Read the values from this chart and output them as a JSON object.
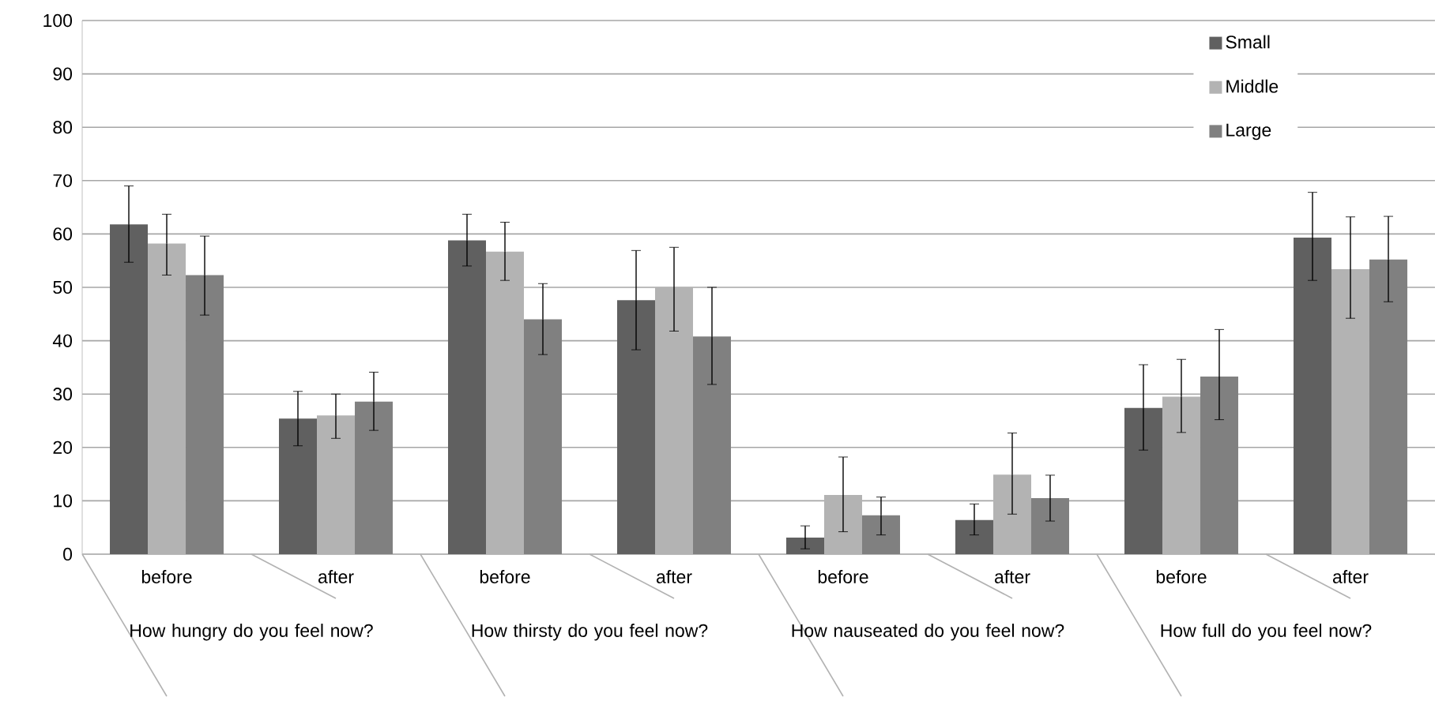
{
  "chart_data": {
    "type": "bar",
    "categories": [
      "before",
      "after",
      "before",
      "after",
      "before",
      "after",
      "before",
      "after"
    ],
    "series": [
      {
        "name": "Small",
        "color": "#606060",
        "values": [
          61.8,
          25.4,
          58.8,
          47.6,
          3.1,
          6.4,
          27.4,
          59.3
        ],
        "errors": [
          [
            54.7,
            69
          ],
          [
            20.3,
            30.5
          ],
          [
            54,
            63.7
          ],
          [
            38.3,
            56.9
          ],
          [
            1,
            5.3
          ],
          [
            3.6,
            9.4
          ],
          [
            19.5,
            35.5
          ],
          [
            51.3,
            67.8
          ]
        ]
      },
      {
        "name": "Middle",
        "color": "#b3b3b3",
        "values": [
          58.2,
          26,
          56.7,
          50,
          11.1,
          14.9,
          29.5,
          53.4
        ],
        "errors": [
          [
            52.3,
            63.7
          ],
          [
            21.7,
            30
          ],
          [
            51.3,
            62.2
          ],
          [
            41.8,
            57.5
          ],
          [
            4.2,
            18.2
          ],
          [
            7.5,
            22.7
          ],
          [
            22.8,
            36.5
          ],
          [
            44.2,
            63.2
          ]
        ]
      },
      {
        "name": "Large",
        "color": "#808080",
        "values": [
          52.3,
          28.6,
          44,
          40.8,
          7.3,
          10.5,
          33.3,
          55.2
        ],
        "errors": [
          [
            44.8,
            59.6
          ],
          [
            23.2,
            34.1
          ],
          [
            37.4,
            50.7
          ],
          [
            31.8,
            50
          ],
          [
            3.6,
            10.7
          ],
          [
            6.2,
            14.8
          ],
          [
            25.2,
            42.1
          ],
          [
            47.3,
            63.3
          ]
        ]
      }
    ],
    "annotations": [
      "How hungry do you feel now?",
      "How thirsty do you feel now?",
      "How nauseated do you feel now?",
      "How full do you feel now?"
    ],
    "ylim": [
      0,
      100
    ],
    "yticks": [
      0,
      10,
      20,
      30,
      40,
      50,
      60,
      70,
      80,
      90,
      100
    ],
    "grid": "y",
    "legend": "top right"
  }
}
